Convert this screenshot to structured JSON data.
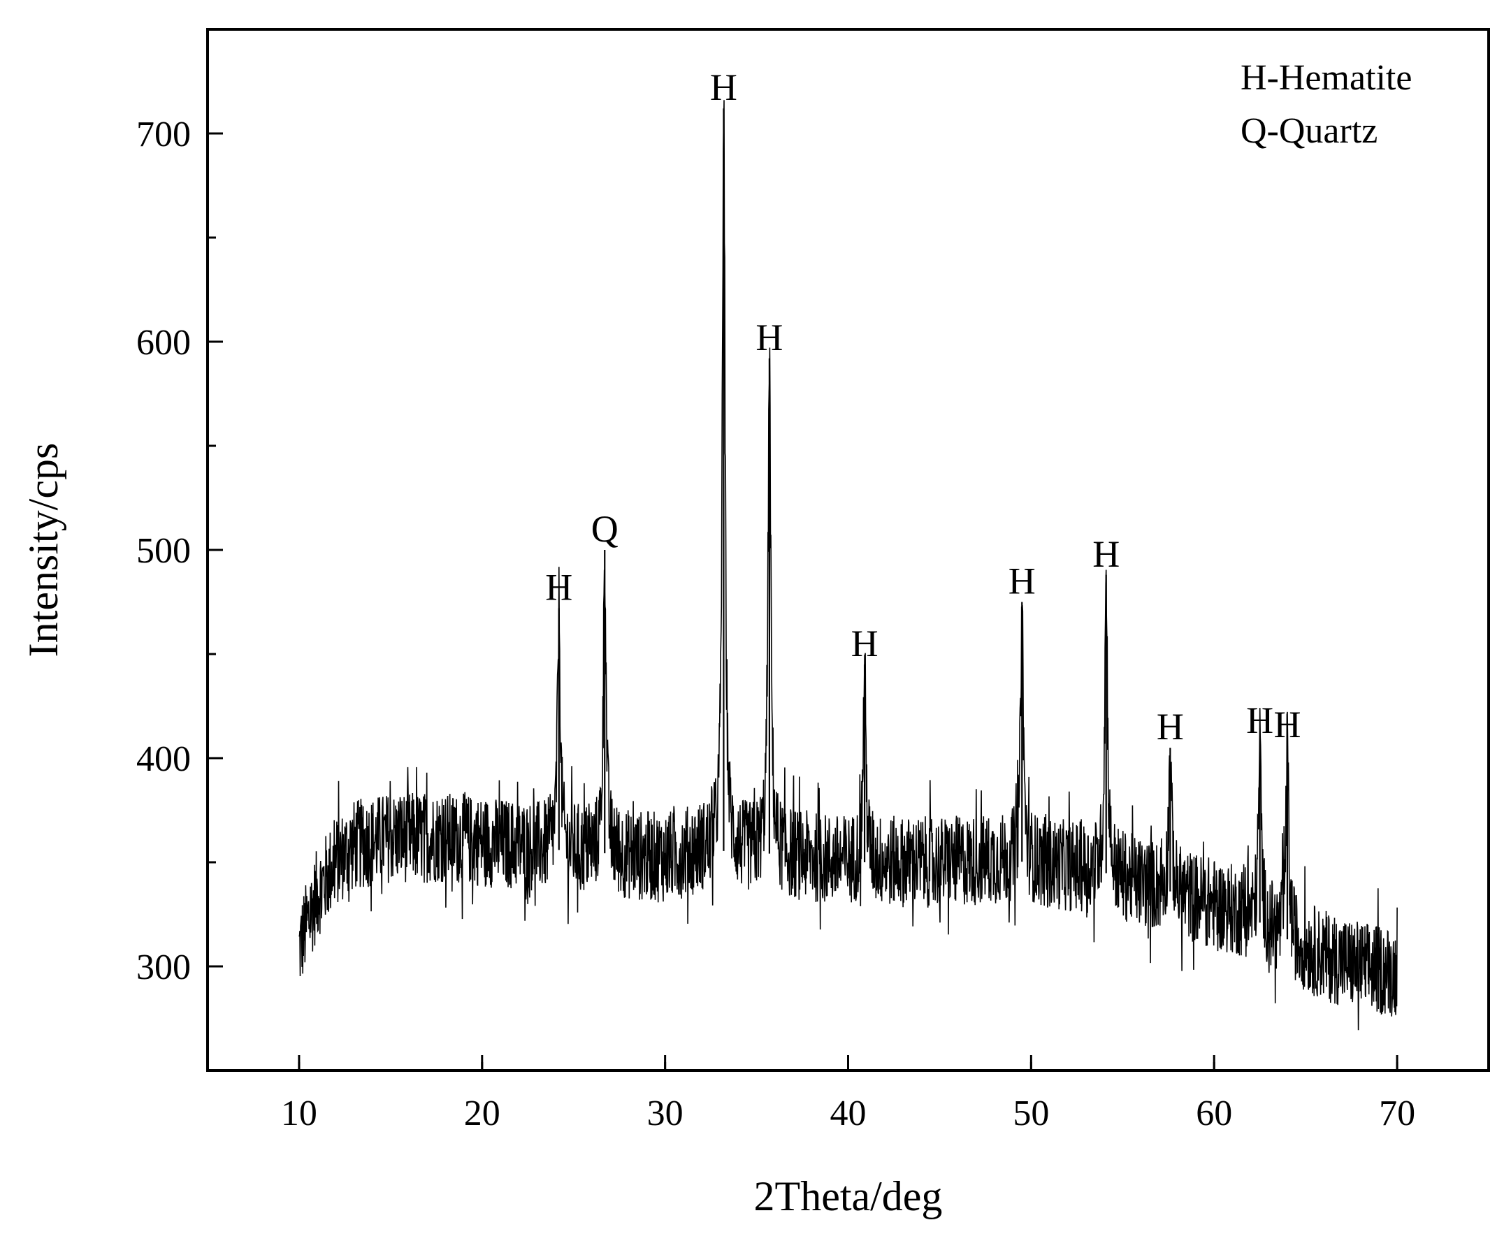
{
  "chart_data": {
    "type": "line",
    "title": "",
    "xlabel": "2Theta/deg",
    "ylabel": "Intensity/cps",
    "xlim": [
      5,
      75
    ],
    "ylim": [
      250,
      750
    ],
    "xticks": [
      10,
      20,
      30,
      40,
      50,
      60,
      70
    ],
    "xtick_labels": [
      "10",
      "20",
      "30",
      "40",
      "50",
      "60",
      "70"
    ],
    "yticks": [
      300,
      400,
      500,
      600,
      700
    ],
    "ytick_labels": [
      "300",
      "400",
      "500",
      "600",
      "700"
    ],
    "grid": false,
    "legend_position": "top-right",
    "legend": [
      {
        "text": "H-Hematite"
      },
      {
        "text": "Q-Quartz"
      }
    ],
    "series": [
      {
        "baseline": [
          [
            10.0,
            308
          ],
          [
            10.5,
            322
          ],
          [
            11.0,
            335
          ],
          [
            12.0,
            350
          ],
          [
            13.0,
            358
          ],
          [
            15.0,
            362
          ],
          [
            18.0,
            362
          ],
          [
            20.0,
            360
          ],
          [
            22.0,
            358
          ],
          [
            24.0,
            356
          ],
          [
            26.0,
            355
          ],
          [
            28.0,
            353
          ],
          [
            30.0,
            352
          ],
          [
            32.0,
            356
          ],
          [
            34.0,
            355
          ],
          [
            36.0,
            354
          ],
          [
            38.0,
            352
          ],
          [
            40.0,
            350
          ],
          [
            42.0,
            350
          ],
          [
            45.0,
            350
          ],
          [
            48.0,
            351
          ],
          [
            50.0,
            350
          ],
          [
            52.0,
            348
          ],
          [
            54.0,
            345
          ],
          [
            56.0,
            340
          ],
          [
            58.0,
            335
          ],
          [
            60.0,
            330
          ],
          [
            62.0,
            324
          ],
          [
            63.0,
            318
          ],
          [
            64.0,
            313
          ],
          [
            66.0,
            305
          ],
          [
            68.0,
            300
          ],
          [
            70.0,
            297
          ]
        ],
        "noise_amplitude": 22,
        "peaks": [
          {
            "x": 24.2,
            "y": 472,
            "label": "H"
          },
          {
            "x": 26.7,
            "y": 500,
            "label": "Q"
          },
          {
            "x": 33.2,
            "y": 712,
            "label": "H"
          },
          {
            "x": 35.7,
            "y": 592,
            "label": "H"
          },
          {
            "x": 40.9,
            "y": 445,
            "label": "H"
          },
          {
            "x": 49.5,
            "y": 475,
            "label": "H"
          },
          {
            "x": 54.1,
            "y": 488,
            "label": "H"
          },
          {
            "x": 57.6,
            "y": 405,
            "label": "H"
          },
          {
            "x": 62.5,
            "y": 408,
            "label": "H"
          },
          {
            "x": 64.0,
            "y": 406,
            "label": "H"
          }
        ]
      }
    ]
  }
}
